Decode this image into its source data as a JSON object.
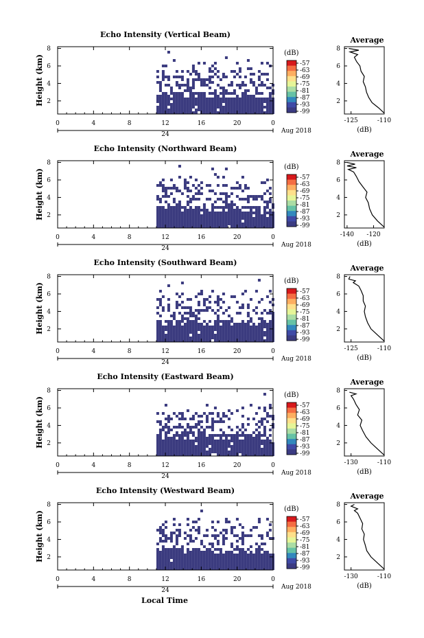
{
  "figure": {
    "xlabel": "Local Time",
    "date_label": "Aug 2018",
    "colorbar_unit": "(dB)",
    "colorbar_ticks": [
      "-57",
      "-63",
      "-69",
      "-75",
      "-81",
      "-87",
      "-93",
      "-99"
    ],
    "colorbar_colors": [
      "#d7191c",
      "#f46d43",
      "#fdae61",
      "#fee08b",
      "#e6f598",
      "#abdda4",
      "#66c2a5",
      "#3288bd",
      "#3f4aa6",
      "#3b3b82"
    ],
    "echo_color": "#3b3b7f",
    "day_label": "24"
  },
  "chart_data": [
    {
      "type": "heatmap",
      "title": "Echo Intensity (Vertical Beam)",
      "ylabel": "Height (km)",
      "xticks": [
        "0",
        "4",
        "8",
        "12",
        "16",
        "20",
        "0"
      ],
      "yticks": [
        "2",
        "4",
        "6",
        "8"
      ],
      "xlim": [
        0,
        24
      ],
      "ylim": [
        0.5,
        8.2
      ],
      "note_visible": "Echo (approx. -99 dB) from about 11 LT onward, dense below ~3 km, patchy up to ~5.5 km",
      "profile": {
        "title": "Average",
        "xlabel": "(dB)",
        "xticks": [
          "-125",
          "-110"
        ],
        "yticks": [
          "2",
          "4",
          "6",
          "8"
        ],
        "xlim": [
          -128,
          -110
        ],
        "points": [
          [
            -110,
            0.6
          ],
          [
            -112.5,
            1.2
          ],
          [
            -115.5,
            1.8
          ],
          [
            -117,
            2.4
          ],
          [
            -118,
            3.0
          ],
          [
            -118.5,
            3.6
          ],
          [
            -119.5,
            4.2
          ],
          [
            -119,
            4.8
          ],
          [
            -120.5,
            5.4
          ],
          [
            -121,
            6.0
          ],
          [
            -122.5,
            6.5
          ],
          [
            -123.5,
            7.0
          ],
          [
            -122,
            7.3
          ],
          [
            -125.5,
            7.6
          ],
          [
            -121.5,
            7.8
          ],
          [
            -126,
            8.0
          ]
        ]
      }
    },
    {
      "type": "heatmap",
      "title": "Echo Intensity (Northward Beam)",
      "ylabel": "Height (km)",
      "xticks": [
        "0",
        "4",
        "8",
        "12",
        "16",
        "20",
        "0"
      ],
      "yticks": [
        "2",
        "4",
        "6",
        "8"
      ],
      "xlim": [
        0,
        24
      ],
      "ylim": [
        0.5,
        8.2
      ],
      "profile": {
        "title": "Average",
        "xlabel": "(dB)",
        "xticks": [
          "-140",
          "-120"
        ],
        "yticks": [
          "2",
          "4",
          "6",
          "8"
        ],
        "xlim": [
          -142,
          -112
        ],
        "points": [
          [
            -112,
            0.6
          ],
          [
            -117,
            1.3
          ],
          [
            -121,
            2.0
          ],
          [
            -123,
            2.7
          ],
          [
            -124,
            3.4
          ],
          [
            -126,
            4.0
          ],
          [
            -125,
            4.6
          ],
          [
            -128,
            5.2
          ],
          [
            -131,
            5.8
          ],
          [
            -133,
            6.4
          ],
          [
            -135,
            6.9
          ],
          [
            -139,
            7.2
          ],
          [
            -133,
            7.4
          ],
          [
            -140,
            7.6
          ],
          [
            -134,
            7.8
          ],
          [
            -140,
            8.0
          ]
        ]
      }
    },
    {
      "type": "heatmap",
      "title": "Echo Intensity (Southward Beam)",
      "ylabel": "Height (km)",
      "xticks": [
        "0",
        "4",
        "8",
        "12",
        "16",
        "20",
        "0"
      ],
      "yticks": [
        "2",
        "4",
        "6",
        "8"
      ],
      "xlim": [
        0,
        24
      ],
      "ylim": [
        0.5,
        8.2
      ],
      "profile": {
        "title": "Average",
        "xlabel": "(dB)",
        "xticks": [
          "-125",
          "-110"
        ],
        "yticks": [
          "2",
          "4",
          "6",
          "8"
        ],
        "xlim": [
          -128,
          -110
        ],
        "points": [
          [
            -110,
            0.6
          ],
          [
            -113,
            1.3
          ],
          [
            -116,
            2.0
          ],
          [
            -117.5,
            2.7
          ],
          [
            -118.5,
            3.4
          ],
          [
            -119,
            4.0
          ],
          [
            -118.5,
            4.6
          ],
          [
            -119.5,
            5.2
          ],
          [
            -119.5,
            5.8
          ],
          [
            -120.5,
            6.4
          ],
          [
            -121.5,
            6.9
          ],
          [
            -124,
            7.3
          ],
          [
            -123,
            7.5
          ],
          [
            -126,
            7.7
          ],
          [
            -125.5,
            8.0
          ]
        ]
      }
    },
    {
      "type": "heatmap",
      "title": "Echo Intensity (Eastward Beam)",
      "ylabel": "Height (km)",
      "xticks": [
        "0",
        "4",
        "8",
        "12",
        "16",
        "20",
        "0"
      ],
      "yticks": [
        "2",
        "4",
        "6",
        "8"
      ],
      "xlim": [
        0,
        24
      ],
      "ylim": [
        0.5,
        8.2
      ],
      "profile": {
        "title": "Average",
        "xlabel": "(dB)",
        "xticks": [
          "-130",
          "-110"
        ],
        "yticks": [
          "2",
          "4",
          "6",
          "8"
        ],
        "xlim": [
          -134,
          -110
        ],
        "points": [
          [
            -110,
            0.6
          ],
          [
            -114,
            1.3
          ],
          [
            -118,
            2.0
          ],
          [
            -121,
            2.7
          ],
          [
            -123,
            3.4
          ],
          [
            -124.5,
            4.0
          ],
          [
            -123.5,
            4.6
          ],
          [
            -126,
            5.2
          ],
          [
            -125,
            5.8
          ],
          [
            -127,
            6.4
          ],
          [
            -128.5,
            7.0
          ],
          [
            -130,
            7.4
          ],
          [
            -127,
            7.6
          ],
          [
            -131,
            7.8
          ]
        ]
      }
    },
    {
      "type": "heatmap",
      "title": "Echo Intensity (Westward Beam)",
      "ylabel": "Height (km)",
      "xticks": [
        "0",
        "4",
        "8",
        "12",
        "16",
        "20",
        "0"
      ],
      "yticks": [
        "2",
        "4",
        "6",
        "8"
      ],
      "xlim": [
        0,
        24
      ],
      "ylim": [
        0.5,
        8.2
      ],
      "profile": {
        "title": "Average",
        "xlabel": "(dB)",
        "xticks": [
          "-130",
          "-110"
        ],
        "yticks": [
          "2",
          "4",
          "6",
          "8"
        ],
        "xlim": [
          -134,
          -110
        ],
        "points": [
          [
            -110,
            0.6
          ],
          [
            -114,
            1.3
          ],
          [
            -118,
            2.0
          ],
          [
            -120.5,
            2.7
          ],
          [
            -121.5,
            3.4
          ],
          [
            -122.5,
            4.0
          ],
          [
            -122,
            4.6
          ],
          [
            -123.5,
            5.2
          ],
          [
            -123,
            5.8
          ],
          [
            -124.5,
            6.4
          ],
          [
            -126,
            7.0
          ],
          [
            -128,
            7.3
          ],
          [
            -126,
            7.5
          ],
          [
            -130,
            7.8
          ],
          [
            -128,
            8.0
          ]
        ]
      }
    }
  ]
}
